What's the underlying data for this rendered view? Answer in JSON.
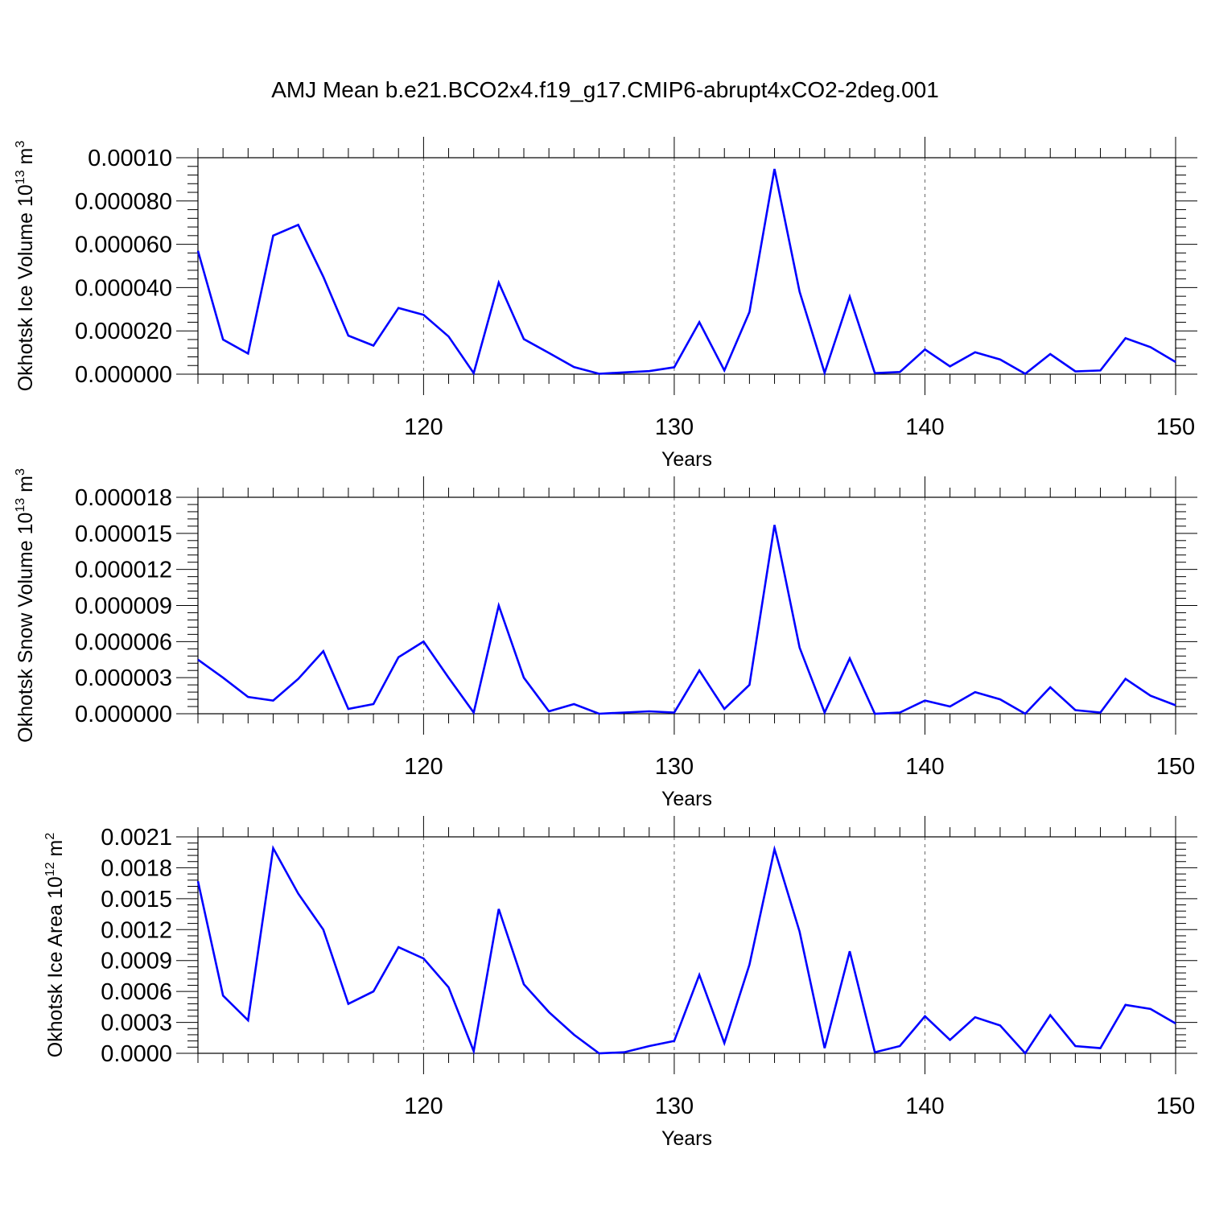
{
  "figure": {
    "title": "AMJ Mean b.e21.BCO2x4.f19_g17.CMIP6-abrupt4xCO2-2deg.001",
    "line_color": "#0000ff"
  },
  "chart_data": [
    {
      "type": "line",
      "xlabel": "Years",
      "ylabel": "Okhotsk Ice Volume 10",
      "ylabel_exp": "13",
      "ylabel_unit": " m",
      "ylabel_unit_exp": "3",
      "xlim": [
        111,
        150
      ],
      "ylim": [
        0,
        0.0001
      ],
      "xticks": [
        120,
        130,
        140,
        150
      ],
      "xtick_labels": [
        "120",
        "130",
        "140",
        "150"
      ],
      "yticks": [
        0,
        2e-05,
        4e-05,
        6e-05,
        8e-05,
        0.0001
      ],
      "ytick_labels": [
        "0.000000",
        "0.000020",
        "0.000040",
        "0.000060",
        "0.000080",
        "0.00010"
      ],
      "grid": "dashed vertical at major x ticks",
      "series": [
        {
          "color": "#0000ff",
          "x": [
            111,
            112,
            113,
            114,
            115,
            116,
            117,
            118,
            119,
            120,
            121,
            122,
            123,
            124,
            125,
            126,
            127,
            128,
            129,
            130,
            131,
            132,
            133,
            134,
            135,
            136,
            137,
            138,
            139,
            140,
            141,
            142,
            143,
            144,
            145,
            146,
            147,
            148,
            149,
            150
          ],
          "values": [
            5.7e-05,
            1.6e-05,
            9.5e-06,
            6.4e-05,
            6.9e-05,
            4.5e-05,
            1.78e-05,
            1.32e-05,
            3.06e-05,
            2.74e-05,
            1.74e-05,
            5e-07,
            4.23e-05,
            1.62e-05,
            9.8e-06,
            3.3e-06,
            2e-07,
            8e-07,
            1.4e-06,
            3.2e-06,
            2.4e-05,
            1.7e-06,
            2.87e-05,
            9.48e-05,
            3.81e-05,
            6e-07,
            3.58e-05,
            5e-07,
            1e-06,
            1.14e-05,
            3.6e-06,
            1.01e-05,
            6.8e-06,
            2e-07,
            9.3e-06,
            1.3e-06,
            1.7e-06,
            1.66e-05,
            1.25e-05,
            5.6e-06
          ]
        }
      ]
    },
    {
      "type": "line",
      "xlabel": "Years",
      "ylabel": "Okhotsk Snow Volume 10",
      "ylabel_exp": "13",
      "ylabel_unit": " m",
      "ylabel_unit_exp": "3",
      "xlim": [
        111,
        150
      ],
      "ylim": [
        0,
        1.8e-05
      ],
      "xticks": [
        120,
        130,
        140,
        150
      ],
      "xtick_labels": [
        "120",
        "130",
        "140",
        "150"
      ],
      "yticks": [
        0,
        3e-06,
        6e-06,
        9e-06,
        1.2e-05,
        1.5e-05,
        1.8e-05
      ],
      "ytick_labels": [
        "0.000000",
        "0.000003",
        "0.000006",
        "0.000009",
        "0.000012",
        "0.000015",
        "0.000018"
      ],
      "grid": "dashed vertical at major x ticks",
      "series": [
        {
          "color": "#0000ff",
          "x": [
            111,
            112,
            113,
            114,
            115,
            116,
            117,
            118,
            119,
            120,
            121,
            122,
            123,
            124,
            125,
            126,
            127,
            128,
            129,
            130,
            131,
            132,
            133,
            134,
            135,
            136,
            137,
            138,
            139,
            140,
            141,
            142,
            143,
            144,
            145,
            146,
            147,
            148,
            149,
            150
          ],
          "values": [
            4.5e-06,
            3e-06,
            1.4e-06,
            1.1e-06,
            2.9e-06,
            5.2e-06,
            4e-07,
            8e-07,
            4.7e-06,
            6e-06,
            3e-06,
            1e-07,
            9e-06,
            3e-06,
            2e-07,
            8e-07,
            0.0,
            1e-07,
            2e-07,
            1e-07,
            3.6e-06,
            4e-07,
            2.4e-06,
            1.57e-05,
            5.5e-06,
            1e-07,
            4.6e-06,
            0.0,
            1e-07,
            1.1e-06,
            6e-07,
            1.8e-06,
            1.2e-06,
            0.0,
            2.2e-06,
            3e-07,
            1e-07,
            2.9e-06,
            1.5e-06,
            7e-07
          ]
        }
      ]
    },
    {
      "type": "line",
      "xlabel": "Years",
      "ylabel": "Okhotsk Ice Area 10",
      "ylabel_exp": "12",
      "ylabel_unit": " m",
      "ylabel_unit_exp": "2",
      "xlim": [
        111,
        150
      ],
      "ylim": [
        0,
        0.0021
      ],
      "xticks": [
        120,
        130,
        140,
        150
      ],
      "xtick_labels": [
        "120",
        "130",
        "140",
        "150"
      ],
      "yticks": [
        0,
        0.0003,
        0.0006,
        0.0009,
        0.0012,
        0.0015,
        0.0018,
        0.0021
      ],
      "ytick_labels": [
        "0.0000",
        "0.0003",
        "0.0006",
        "0.0009",
        "0.0012",
        "0.0015",
        "0.0018",
        "0.0021"
      ],
      "grid": "dashed vertical at major x ticks",
      "series": [
        {
          "color": "#0000ff",
          "x": [
            111,
            112,
            113,
            114,
            115,
            116,
            117,
            118,
            119,
            120,
            121,
            122,
            123,
            124,
            125,
            126,
            127,
            128,
            129,
            130,
            131,
            132,
            133,
            134,
            135,
            136,
            137,
            138,
            139,
            140,
            141,
            142,
            143,
            144,
            145,
            146,
            147,
            148,
            149,
            150
          ],
          "values": [
            0.00167,
            0.00056,
            0.00032,
            0.00199,
            0.00155,
            0.0012,
            0.00048,
            0.0006,
            0.00103,
            0.00092,
            0.00064,
            2e-05,
            0.0014,
            0.00067,
            0.0004,
            0.00018,
            0.0,
            1e-05,
            7e-05,
            0.00012,
            0.00076,
            0.0001,
            0.00086,
            0.00198,
            0.00118,
            5e-05,
            0.00099,
            1e-05,
            7e-05,
            0.00036,
            0.00013,
            0.00035,
            0.00027,
            0.0,
            0.00037,
            7e-05,
            5e-05,
            0.00047,
            0.00043,
            0.00029
          ]
        }
      ]
    }
  ]
}
